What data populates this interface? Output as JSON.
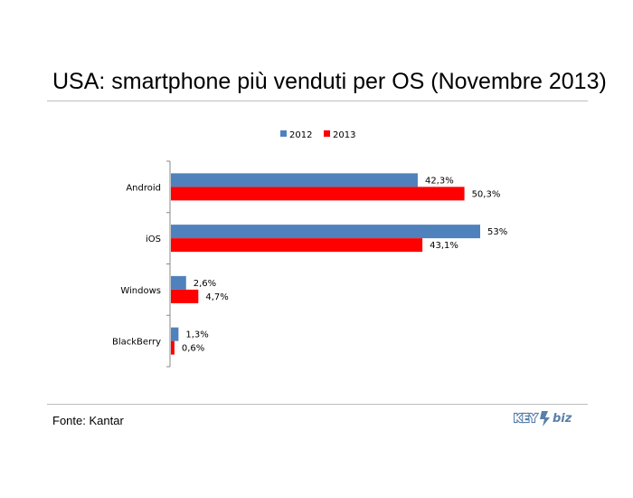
{
  "slide": {
    "title": "USA: smartphone più venduti per OS (Novembre 2013)",
    "source": "Fonte: Kantar",
    "logo_text_left": "KEY",
    "logo_text_right": "biz"
  },
  "chart_data": {
    "type": "bar",
    "orientation": "horizontal",
    "categories": [
      "Android",
      "iOS",
      "Windows",
      "BlackBerry"
    ],
    "series": [
      {
        "name": "2012",
        "color": "#4F81BD",
        "values": [
          42.3,
          53,
          2.6,
          1.3
        ],
        "labels": [
          "42,3%",
          "53%",
          "2,6%",
          "1,3%"
        ]
      },
      {
        "name": "2013",
        "color": "#FF0000",
        "values": [
          50.3,
          43.1,
          4.7,
          0.6
        ],
        "labels": [
          "50,3%",
          "43,1%",
          "4,7%",
          "0,6%"
        ]
      }
    ],
    "xlim": [
      0,
      55
    ],
    "grid": false,
    "legend_position": "top-center",
    "title": "",
    "xlabel": "",
    "ylabel": ""
  }
}
